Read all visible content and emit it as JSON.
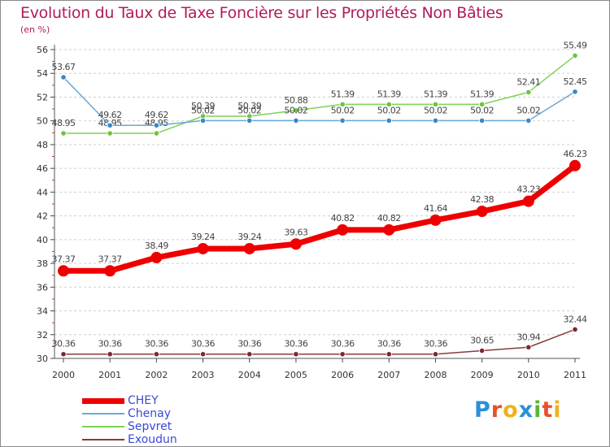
{
  "title": "Evolution du Taux de Taxe Foncière sur les Propriétés Non Bâties",
  "unit": "(en %)",
  "logo": {
    "text": "Proxiti",
    "colors": [
      "#2a8fd8",
      "#e8502a",
      "#f2b01e",
      "#2a8fd8",
      "#5bb533",
      "#e8502a",
      "#f2b01e"
    ]
  },
  "chart_data": {
    "type": "line",
    "title": "Evolution du Taux de Taxe Foncière sur les Propriétés Non Bâties",
    "ylabel": "(en %)",
    "xlabel": "",
    "categories": [
      "2000",
      "2001",
      "2002",
      "2003",
      "2004",
      "2005",
      "2006",
      "2007",
      "2008",
      "2009",
      "2010",
      "2011"
    ],
    "ylim": [
      30,
      56
    ],
    "yticks": [
      "30",
      "32",
      "34",
      "36",
      "38",
      "40",
      "42",
      "44",
      "46",
      "48",
      "50",
      "52",
      "54",
      "56"
    ],
    "grid": "horizontal dashed",
    "legend": "bottom-left",
    "series": [
      {
        "name": "Sepvret",
        "color": "#7dd350",
        "marker": "#6cc43e",
        "values": [
          48.95,
          48.95,
          48.95,
          50.39,
          50.39,
          50.88,
          51.39,
          51.39,
          51.39,
          51.39,
          52.41,
          55.49
        ],
        "labels": [
          "48.95",
          "48.95",
          "48.95",
          "50.39",
          "50.39",
          "50.88",
          "51.39",
          "51.39",
          "51.39",
          "51.39",
          "52.41",
          "55.49"
        ]
      },
      {
        "name": "Chenay",
        "color": "#6aa8d6",
        "marker": "#3a86c8",
        "values": [
          53.67,
          49.62,
          49.62,
          50.02,
          50.02,
          50.02,
          50.02,
          50.02,
          50.02,
          50.02,
          50.02,
          52.45
        ],
        "labels": [
          "53.67",
          "49.62",
          "49.62",
          "50.02",
          "50.02",
          "50.02",
          "50.02",
          "50.02",
          "50.02",
          "50.02",
          "50.02",
          "52.45"
        ]
      },
      {
        "name": "CHEY",
        "color": "#ee0000",
        "marker": "#ee0000",
        "values": [
          37.37,
          37.37,
          38.49,
          39.24,
          39.24,
          39.63,
          40.82,
          40.82,
          41.64,
          42.38,
          43.23,
          46.23
        ],
        "labels": [
          "37.37",
          "37.37",
          "38.49",
          "39.24",
          "39.24",
          "39.63",
          "40.82",
          "40.82",
          "41.64",
          "42.38",
          "43.23",
          "46.23"
        ]
      },
      {
        "name": "Exoudun",
        "color": "#8a3a3a",
        "marker": "#7a2a2a",
        "values": [
          30.36,
          30.36,
          30.36,
          30.36,
          30.36,
          30.36,
          30.36,
          30.36,
          30.36,
          30.65,
          30.94,
          32.44
        ],
        "labels": [
          "30.36",
          "30.36",
          "30.36",
          "30.36",
          "30.36",
          "30.36",
          "30.36",
          "30.36",
          "30.36",
          "30.65",
          "30.94",
          "32.44"
        ]
      }
    ],
    "legend_order": [
      "CHEY",
      "Chenay",
      "Sepvret",
      "Exoudun"
    ]
  }
}
